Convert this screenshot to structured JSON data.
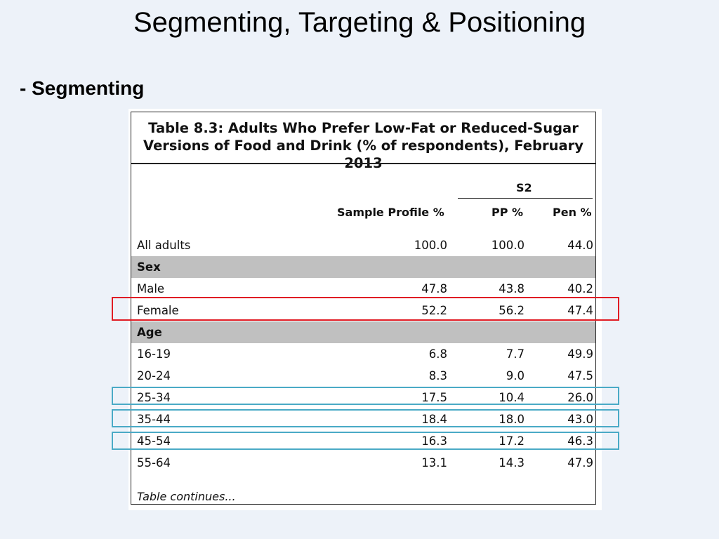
{
  "slide": {
    "title": "Segmenting, Targeting & Positioning",
    "subheading": "- Segmenting"
  },
  "table": {
    "caption_line1": "Table 8.3: Adults Who Prefer Low-Fat or Reduced-Sugar",
    "caption_line2": "Versions of Food and Drink (% of respondents), February 2013",
    "group_header": "S2",
    "columns": [
      "Sample Profile %",
      "PP %",
      "Pen %"
    ],
    "rows": [
      {
        "label": "All adults",
        "values": [
          "100.0",
          "100.0",
          "44.0"
        ]
      },
      {
        "label": "Sex",
        "section": true
      },
      {
        "label": "Male",
        "values": [
          "47.8",
          "43.8",
          "40.2"
        ]
      },
      {
        "label": "Female",
        "values": [
          "52.2",
          "56.2",
          "47.4"
        ]
      },
      {
        "label": "Age",
        "section": true
      },
      {
        "label": "16-19",
        "values": [
          "6.8",
          "7.7",
          "49.9"
        ]
      },
      {
        "label": "20-24",
        "values": [
          "8.3",
          "9.0",
          "47.5"
        ]
      },
      {
        "label": "25-34",
        "values": [
          "17.5",
          "10.4",
          "26.0"
        ]
      },
      {
        "label": "35-44",
        "values": [
          "18.4",
          "18.0",
          "43.0"
        ]
      },
      {
        "label": "45-54",
        "values": [
          "16.3",
          "17.2",
          "46.3"
        ]
      },
      {
        "label": "55-64",
        "values": [
          "13.1",
          "14.3",
          "47.9"
        ]
      }
    ],
    "footnote": "Table continues..."
  },
  "highlight_colors": {
    "red": "#e01c24",
    "blue": "#4aaac6"
  }
}
